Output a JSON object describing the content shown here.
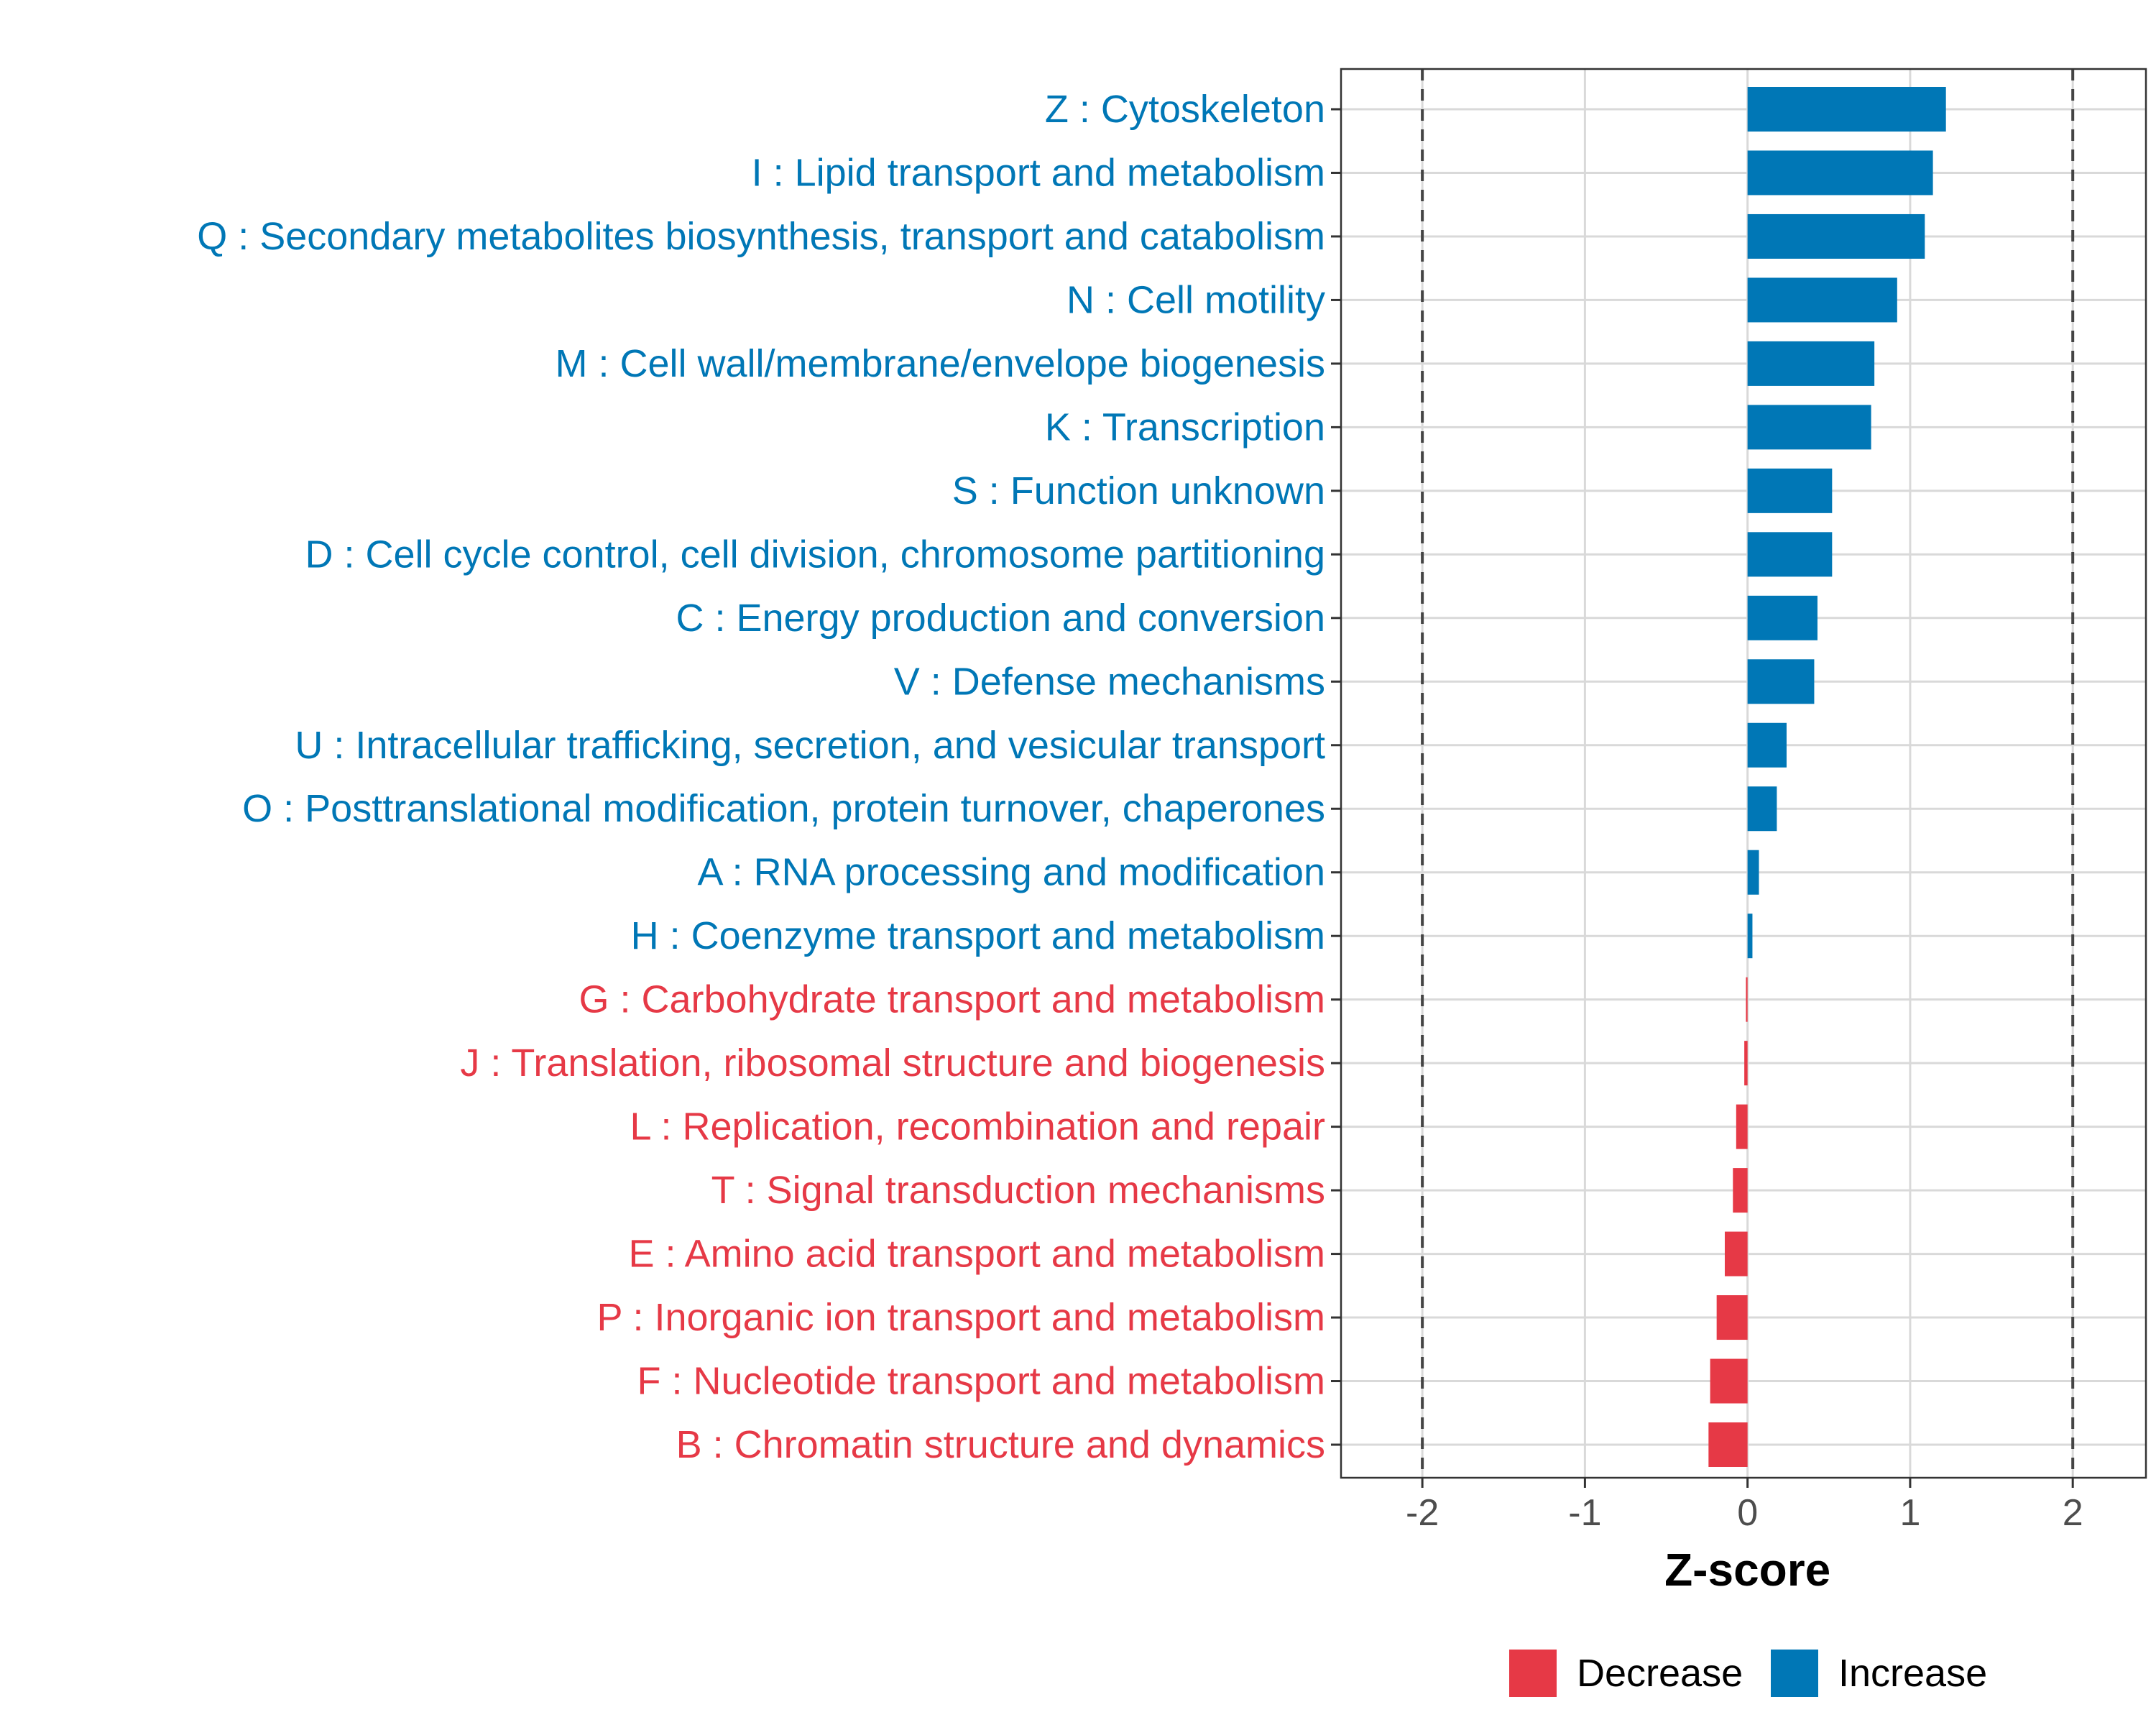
{
  "chart_data": {
    "type": "bar",
    "orientation": "horizontal",
    "xlabel": "Z-score",
    "ylabel": "",
    "xlim": [
      -2.5,
      2.45
    ],
    "xticks": [
      -2,
      -1,
      0,
      1,
      2
    ],
    "xtick_labels": [
      "-2",
      "-1",
      "0",
      "1",
      "2"
    ],
    "reference_lines": [
      -2,
      2
    ],
    "grid": true,
    "legend": {
      "placement": "bottom",
      "items": [
        {
          "label": "Decrease",
          "color": "#E63946"
        },
        {
          "label": "Increase",
          "color": "#0077B6"
        }
      ]
    },
    "categories": [
      "Z : Cytoskeleton",
      "I : Lipid transport and metabolism",
      "Q : Secondary metabolites biosynthesis, transport and catabolism",
      "N : Cell motility",
      "M : Cell wall/membrane/envelope biogenesis",
      "K : Transcription",
      "S : Function unknown",
      "D : Cell cycle control, cell division, chromosome partitioning",
      "C : Energy production and conversion",
      "V : Defense mechanisms",
      "U : Intracellular trafficking, secretion, and vesicular transport",
      "O : Posttranslational modification, protein turnover, chaperones",
      "A : RNA processing and modification",
      "H : Coenzyme transport and metabolism",
      "G : Carbohydrate transport and metabolism",
      "J : Translation, ribosomal structure and biogenesis",
      "L : Replication, recombination and repair",
      "T : Signal transduction mechanisms",
      "E : Amino acid transport and metabolism",
      "P : Inorganic ion transport and metabolism",
      "F : Nucleotide transport and metabolism",
      "B : Chromatin structure and dynamics"
    ],
    "values": [
      1.22,
      1.14,
      1.09,
      0.92,
      0.78,
      0.76,
      0.52,
      0.52,
      0.43,
      0.41,
      0.24,
      0.18,
      0.07,
      0.03,
      -0.01,
      -0.02,
      -0.07,
      -0.09,
      -0.14,
      -0.19,
      -0.23,
      -0.24
    ],
    "direction": [
      "Increase",
      "Increase",
      "Increase",
      "Increase",
      "Increase",
      "Increase",
      "Increase",
      "Increase",
      "Increase",
      "Increase",
      "Increase",
      "Increase",
      "Increase",
      "Increase",
      "Decrease",
      "Decrease",
      "Decrease",
      "Decrease",
      "Decrease",
      "Decrease",
      "Decrease",
      "Decrease"
    ]
  }
}
